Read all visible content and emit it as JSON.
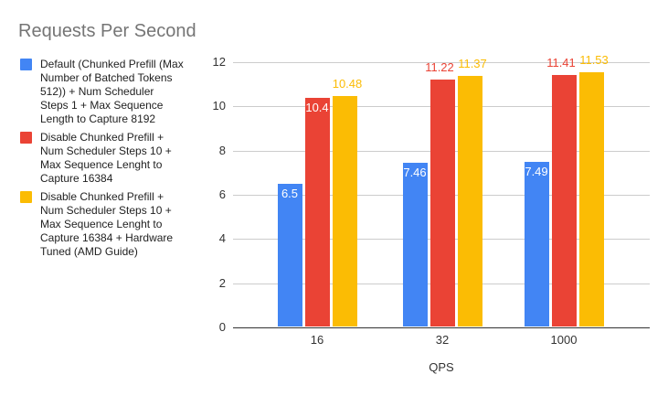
{
  "title": "Requests Per Second",
  "title_color": "#757575",
  "legend": {
    "items": [
      {
        "label": "Default (Chunked Prefill (Max\nNumber of Batched Tokens\n512)) + Num Scheduler\nSteps 1 + Max Sequence\nLength to Capture 8192",
        "color": "#4285F4"
      },
      {
        "label": "Disable Chunked Prefill +\nNum Scheduler Steps 10 +\nMax Sequence Lenght to\nCapture 16384",
        "color": "#EA4335"
      },
      {
        "label": "Disable Chunked Prefill +\nNum Scheduler Steps 10 +\nMax Sequence Lenght to\nCapture 16384 + Hardware\nTuned (AMD Guide)",
        "color": "#FBBC04"
      }
    ]
  },
  "chart_data": {
    "type": "bar",
    "title": "Requests Per Second",
    "categories": [
      "16",
      "32",
      "1000"
    ],
    "series": [
      {
        "name": "Default (Chunked Prefill (Max Number of Batched Tokens 512)) + Num Scheduler Steps 1 + Max Sequence Length to Capture 8192",
        "color": "#4285F4",
        "values": [
          6.5,
          7.46,
          7.49
        ],
        "labels": [
          "6.5",
          "7.46",
          "7.49"
        ],
        "label_placement": [
          "inside",
          "inside",
          "inside"
        ]
      },
      {
        "name": "Disable Chunked Prefill + Num Scheduler Steps 10 + Max Sequence Lenght to Capture 16384",
        "color": "#EA4335",
        "values": [
          10.4,
          11.22,
          11.41
        ],
        "labels": [
          "10.4",
          "11.22",
          "11.41"
        ],
        "label_placement": [
          "inside",
          "above",
          "above"
        ]
      },
      {
        "name": "Disable Chunked Prefill + Num Scheduler Steps 10 + Max Sequence Lenght to Capture 16384 + Hardware Tuned (AMD Guide)",
        "color": "#FBBC04",
        "values": [
          10.48,
          11.37,
          11.53
        ],
        "labels": [
          "10.48",
          "11.37",
          "11.53"
        ],
        "label_placement": [
          "above",
          "above",
          "above"
        ]
      }
    ],
    "xlabel": "QPS",
    "ylabel": "",
    "ylim": [
      0,
      12
    ],
    "yticks": [
      0,
      2,
      4,
      6,
      8,
      10,
      12
    ],
    "grid": true,
    "legend_position": "left",
    "grid_color": "#cccccc",
    "axis_color": "#333333",
    "tick_label_color": "#333333"
  }
}
